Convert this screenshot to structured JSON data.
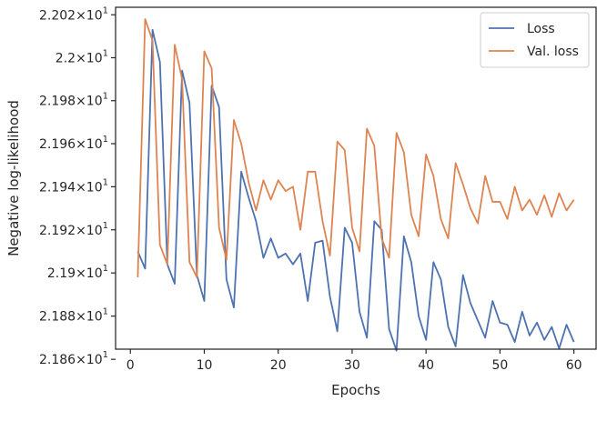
{
  "chart_data": {
    "type": "line",
    "xlabel": "Epochs",
    "ylabel": "Negative log-likelihood",
    "xlim": [
      -2,
      63
    ],
    "ylim": [
      21.8647,
      22.0235
    ],
    "y_scale": "log",
    "x_ticks": [
      0,
      10,
      20,
      30,
      40,
      50,
      60
    ],
    "x_tick_labels": [
      "0",
      "10",
      "20",
      "30",
      "40",
      "50",
      "60"
    ],
    "y_ticks": [
      21.86,
      21.88,
      21.9,
      21.92,
      21.94,
      21.96,
      21.98,
      22.0,
      22.02
    ],
    "y_tick_labels": [
      {
        "mantissa": "2.186",
        "exponent": "1"
      },
      {
        "mantissa": "2.188",
        "exponent": "1"
      },
      {
        "mantissa": "2.19",
        "exponent": "1"
      },
      {
        "mantissa": "2.192",
        "exponent": "1"
      },
      {
        "mantissa": "2.194",
        "exponent": "1"
      },
      {
        "mantissa": "2.196",
        "exponent": "1"
      },
      {
        "mantissa": "2.198",
        "exponent": "1"
      },
      {
        "mantissa": "2.2",
        "exponent": "1"
      },
      {
        "mantissa": "2.202",
        "exponent": "1"
      }
    ],
    "tick_base": "10",
    "grid": false,
    "legend_position": "top-right",
    "x": [
      1,
      2,
      3,
      4,
      5,
      6,
      7,
      8,
      9,
      10,
      11,
      12,
      13,
      14,
      15,
      16,
      17,
      18,
      19,
      20,
      21,
      22,
      23,
      24,
      25,
      26,
      27,
      28,
      29,
      30,
      31,
      32,
      33,
      34,
      35,
      36,
      37,
      38,
      39,
      40,
      41,
      42,
      43,
      44,
      45,
      46,
      47,
      48,
      49,
      50,
      51,
      52,
      53,
      54,
      55,
      56,
      57,
      58,
      59,
      60
    ],
    "series": [
      {
        "name": "Loss",
        "color": "#4c72b0",
        "values": [
          21.91,
          21.902,
          22.013,
          21.998,
          21.904,
          21.895,
          21.994,
          21.979,
          21.899,
          21.887,
          21.987,
          21.977,
          21.897,
          21.884,
          21.947,
          21.935,
          21.924,
          21.907,
          21.916,
          21.907,
          21.909,
          21.904,
          21.909,
          21.887,
          21.914,
          21.915,
          21.889,
          21.873,
          21.921,
          21.914,
          21.882,
          21.87,
          21.924,
          21.92,
          21.874,
          21.864,
          21.917,
          21.905,
          21.88,
          21.869,
          21.905,
          21.897,
          21.875,
          21.866,
          21.899,
          21.886,
          21.878,
          21.87,
          21.887,
          21.877,
          21.876,
          21.868,
          21.882,
          21.871,
          21.877,
          21.869,
          21.875,
          21.865,
          21.876,
          21.868
        ]
      },
      {
        "name": "Val. loss",
        "color": "#dd8452",
        "values": [
          21.898,
          22.018,
          22.008,
          21.913,
          21.904,
          22.006,
          21.99,
          21.905,
          21.898,
          22.003,
          21.995,
          21.921,
          21.906,
          21.971,
          21.96,
          21.942,
          21.929,
          21.943,
          21.934,
          21.943,
          21.938,
          21.94,
          21.92,
          21.947,
          21.947,
          21.924,
          21.908,
          21.961,
          21.957,
          21.921,
          21.91,
          21.967,
          21.959,
          21.916,
          21.907,
          21.965,
          21.956,
          21.927,
          21.917,
          21.955,
          21.945,
          21.925,
          21.916,
          21.951,
          21.941,
          21.93,
          21.923,
          21.945,
          21.933,
          21.933,
          21.925,
          21.94,
          21.929,
          21.934,
          21.927,
          21.936,
          21.926,
          21.937,
          21.929,
          21.934
        ]
      }
    ]
  }
}
